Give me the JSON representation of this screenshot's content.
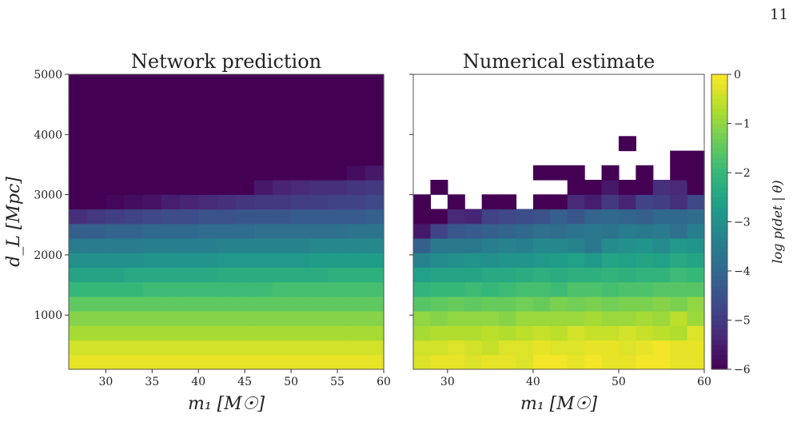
{
  "page_number": "11",
  "chart_data": [
    {
      "type": "heatmap",
      "title": "Network prediction",
      "xlabel": "m₁ [M☉]",
      "ylabel": "d_L [Mpc]",
      "x_edges": [
        26,
        28,
        30,
        32,
        34,
        36,
        38,
        40,
        42,
        44,
        46,
        48,
        50,
        52,
        54,
        56,
        58,
        60
      ],
      "y_edges": [
        100,
        342.1,
        584.2,
        826.3,
        1068.4,
        1310.5,
        1552.6,
        1794.7,
        2036.8,
        2278.9,
        2521.0,
        2763.1,
        3005.2,
        3247.3,
        3489.4,
        3731.5,
        3973.6,
        4215.7,
        4457.8,
        4699.9,
        5000
      ],
      "xticks": [
        30,
        35,
        40,
        45,
        50,
        55,
        60
      ],
      "yticks": [
        1000,
        2000,
        3000,
        4000,
        5000
      ],
      "xlim": [
        26,
        60
      ],
      "ylim": [
        100,
        5000
      ],
      "z": [
        [
          -0.2,
          -0.2,
          -0.2,
          -0.2,
          -0.2,
          -0.2,
          -0.2,
          -0.2,
          -0.2,
          -0.2,
          -0.2,
          -0.2,
          -0.2,
          -0.2,
          -0.2,
          -0.2,
          -0.2
        ],
        [
          -0.4,
          -0.4,
          -0.4,
          -0.4,
          -0.4,
          -0.4,
          -0.4,
          -0.4,
          -0.4,
          -0.4,
          -0.4,
          -0.4,
          -0.4,
          -0.4,
          -0.4,
          -0.4,
          -0.4
        ],
        [
          -0.8,
          -0.8,
          -0.8,
          -0.8,
          -0.8,
          -0.8,
          -0.8,
          -0.8,
          -0.8,
          -0.8,
          -0.8,
          -0.8,
          -0.8,
          -0.8,
          -0.8,
          -0.8,
          -0.8
        ],
        [
          -1.1,
          -1.1,
          -1.1,
          -1.1,
          -1.1,
          -1.1,
          -1.1,
          -1.1,
          -1.1,
          -1.1,
          -1.1,
          -1.1,
          -1.1,
          -1.1,
          -1.1,
          -1.1,
          -1.1
        ],
        [
          -1.5,
          -1.5,
          -1.5,
          -1.5,
          -1.5,
          -1.5,
          -1.5,
          -1.5,
          -1.5,
          -1.5,
          -1.5,
          -1.5,
          -1.5,
          -1.5,
          -1.5,
          -1.5,
          -1.5
        ],
        [
          -2.0,
          -2.0,
          -2.0,
          -2.0,
          -1.9,
          -1.9,
          -1.9,
          -1.9,
          -1.9,
          -1.9,
          -1.9,
          -1.8,
          -1.8,
          -1.8,
          -1.8,
          -1.8,
          -1.8
        ],
        [
          -2.5,
          -2.5,
          -2.5,
          -2.4,
          -2.4,
          -2.4,
          -2.4,
          -2.4,
          -2.3,
          -2.3,
          -2.3,
          -2.3,
          -2.3,
          -2.3,
          -2.2,
          -2.2,
          -2.2
        ],
        [
          -3.0,
          -3.0,
          -3.0,
          -3.0,
          -2.9,
          -2.9,
          -2.9,
          -2.9,
          -2.8,
          -2.8,
          -2.8,
          -2.8,
          -2.8,
          -2.7,
          -2.7,
          -2.7,
          -2.7
        ],
        [
          -3.5,
          -3.5,
          -3.5,
          -3.5,
          -3.4,
          -3.4,
          -3.4,
          -3.4,
          -3.3,
          -3.3,
          -3.3,
          -3.3,
          -3.3,
          -3.2,
          -3.2,
          -3.2,
          -3.2
        ],
        [
          -4.2,
          -4.2,
          -4.1,
          -4.1,
          -4.0,
          -4.0,
          -4.0,
          -3.9,
          -3.9,
          -3.9,
          -3.8,
          -3.8,
          -3.8,
          -3.8,
          -3.8,
          -3.7,
          -3.7
        ],
        [
          -5.2,
          -5.0,
          -4.9,
          -4.8,
          -4.7,
          -4.6,
          -4.6,
          -4.5,
          -4.5,
          -4.4,
          -4.4,
          -4.4,
          -4.3,
          -4.3,
          -4.3,
          -4.3,
          -4.2
        ],
        [
          -6.0,
          -6.0,
          -5.9,
          -5.8,
          -5.7,
          -5.5,
          -5.4,
          -5.3,
          -5.2,
          -5.1,
          -5.0,
          -5.0,
          -4.9,
          -4.9,
          -4.8,
          -4.8,
          -4.7
        ],
        [
          -6.0,
          -6.0,
          -6.0,
          -6.0,
          -6.0,
          -6.0,
          -6.0,
          -6.0,
          -6.0,
          -6.0,
          -5.6,
          -5.4,
          -5.3,
          -5.2,
          -5.2,
          -5.1,
          -5.0
        ],
        [
          -6.0,
          -6.0,
          -6.0,
          -6.0,
          -6.0,
          -6.0,
          -6.0,
          -6.0,
          -6.0,
          -6.0,
          -6.0,
          -6.0,
          -6.0,
          -6.0,
          -6.0,
          -5.8,
          -5.6
        ],
        [
          -6.0,
          -6.0,
          -6.0,
          -6.0,
          -6.0,
          -6.0,
          -6.0,
          -6.0,
          -6.0,
          -6.0,
          -6.0,
          -6.0,
          -6.0,
          -6.0,
          -6.0,
          -6.0,
          -6.0
        ],
        [
          -6.0,
          -6.0,
          -6.0,
          -6.0,
          -6.0,
          -6.0,
          -6.0,
          -6.0,
          -6.0,
          -6.0,
          -6.0,
          -6.0,
          -6.0,
          -6.0,
          -6.0,
          -6.0,
          -6.0
        ],
        [
          -6.0,
          -6.0,
          -6.0,
          -6.0,
          -6.0,
          -6.0,
          -6.0,
          -6.0,
          -6.0,
          -6.0,
          -6.0,
          -6.0,
          -6.0,
          -6.0,
          -6.0,
          -6.0,
          -6.0
        ],
        [
          -6.0,
          -6.0,
          -6.0,
          -6.0,
          -6.0,
          -6.0,
          -6.0,
          -6.0,
          -6.0,
          -6.0,
          -6.0,
          -6.0,
          -6.0,
          -6.0,
          -6.0,
          -6.0,
          -6.0
        ],
        [
          -6.0,
          -6.0,
          -6.0,
          -6.0,
          -6.0,
          -6.0,
          -6.0,
          -6.0,
          -6.0,
          -6.0,
          -6.0,
          -6.0,
          -6.0,
          -6.0,
          -6.0,
          -6.0,
          -6.0
        ],
        [
          -6.0,
          -6.0,
          -6.0,
          -6.0,
          -6.0,
          -6.0,
          -6.0,
          -6.0,
          -6.0,
          -6.0,
          -6.0,
          -6.0,
          -6.0,
          -6.0,
          -6.0,
          -6.0,
          -6.0
        ]
      ]
    },
    {
      "type": "heatmap",
      "title": "Numerical estimate",
      "xlabel": "m₁ [M☉]",
      "x_edges": [
        26,
        28,
        30,
        32,
        34,
        36,
        38,
        40,
        42,
        44,
        46,
        48,
        50,
        52,
        54,
        56,
        58,
        60
      ],
      "y_edges": [
        100,
        342.1,
        584.2,
        826.3,
        1068.4,
        1310.5,
        1552.6,
        1794.7,
        2036.8,
        2278.9,
        2521.0,
        2763.1,
        3005.2,
        3247.3,
        3489.4,
        3731.5,
        3973.6,
        4215.7,
        4457.8,
        4699.9,
        5000
      ],
      "xticks": [
        30,
        40,
        50,
        60
      ],
      "xlim": [
        26,
        60
      ],
      "ylim": [
        100,
        5000
      ],
      "z": [
        [
          -0.3,
          -0.2,
          -0.2,
          -0.3,
          -0.2,
          -0.2,
          -0.3,
          -0.1,
          -0.1,
          -0.2,
          -0.1,
          -0.2,
          -0.2,
          -0.1,
          -0.1,
          -0.2,
          -0.2
        ],
        [
          -0.4,
          -0.4,
          -0.3,
          -0.4,
          -0.5,
          -0.3,
          -0.3,
          -0.2,
          -0.3,
          -0.3,
          -0.2,
          -0.2,
          -0.3,
          -0.2,
          -0.1,
          -0.2,
          -0.2
        ],
        [
          -0.8,
          -0.7,
          -0.7,
          -0.7,
          -0.6,
          -0.7,
          -0.6,
          -0.5,
          -0.6,
          -0.4,
          -0.5,
          -0.5,
          -0.4,
          -0.5,
          -0.6,
          -0.7,
          -0.3
        ],
        [
          -1.0,
          -1.1,
          -1.0,
          -1.0,
          -1.0,
          -1.1,
          -0.9,
          -0.9,
          -0.9,
          -0.9,
          -0.8,
          -0.9,
          -0.9,
          -0.8,
          -0.9,
          -0.6,
          -0.9
        ],
        [
          -1.6,
          -1.5,
          -1.4,
          -1.5,
          -1.4,
          -1.4,
          -1.3,
          -1.4,
          -1.2,
          -1.3,
          -1.2,
          -1.3,
          -1.2,
          -1.2,
          -1.1,
          -1.2,
          -1.0
        ],
        [
          -2.1,
          -2.0,
          -2.0,
          -1.9,
          -2.0,
          -1.9,
          -1.8,
          -1.8,
          -1.9,
          -1.7,
          -1.7,
          -1.8,
          -1.7,
          -1.7,
          -1.6,
          -1.6,
          -1.6
        ],
        [
          -2.6,
          -2.5,
          -2.5,
          -2.5,
          -2.4,
          -2.4,
          -2.3,
          -2.2,
          -2.3,
          -2.2,
          -2.2,
          -2.1,
          -2.2,
          -2.1,
          -2.1,
          -1.9,
          -2.0
        ],
        [
          -3.3,
          -3.1,
          -3.0,
          -2.9,
          -3.0,
          -2.9,
          -2.9,
          -2.8,
          -2.7,
          -2.6,
          -2.8,
          -2.5,
          -2.6,
          -2.5,
          -2.6,
          -2.4,
          -2.5
        ],
        [
          -4.2,
          -3.6,
          -3.6,
          -3.6,
          -3.4,
          -3.3,
          -3.4,
          -3.2,
          -3.2,
          -3.3,
          -3.6,
          -3.1,
          -3.0,
          -2.9,
          -3.1,
          -2.8,
          -2.9
        ],
        [
          -5.6,
          -4.8,
          -4.4,
          -4.3,
          -4.2,
          -4.1,
          -4.0,
          -3.8,
          -3.9,
          -3.7,
          -3.6,
          -3.7,
          -3.5,
          -3.6,
          -3.5,
          -3.8,
          -3.4
        ],
        [
          -6.0,
          -6.0,
          -5.3,
          -5.4,
          -4.8,
          -4.7,
          -4.6,
          -4.5,
          -4.2,
          -4.4,
          -4.1,
          -4.0,
          -4.1,
          -4.2,
          -4.0,
          -4.0,
          -3.9
        ],
        [
          -6.0,
          null,
          -6.0,
          null,
          -6.0,
          -6.0,
          null,
          -6.0,
          -6.0,
          -5.3,
          -5.5,
          -5.0,
          -5.4,
          -4.8,
          -4.9,
          -5.2,
          -4.7
        ],
        [
          null,
          -6.0,
          null,
          null,
          null,
          null,
          null,
          null,
          null,
          -6.0,
          -6.0,
          -5.6,
          -6.0,
          -6.0,
          -5.2,
          -5.3,
          -6.0
        ],
        [
          null,
          null,
          null,
          null,
          null,
          null,
          null,
          -6.0,
          -6.0,
          -6.0,
          null,
          -6.0,
          null,
          -6.0,
          null,
          -6.0,
          -6.0
        ],
        [
          null,
          null,
          null,
          null,
          null,
          null,
          null,
          null,
          null,
          null,
          null,
          null,
          null,
          null,
          null,
          -6.0,
          -6.0
        ],
        [
          null,
          null,
          null,
          null,
          null,
          null,
          null,
          null,
          null,
          null,
          null,
          null,
          -6.0,
          null,
          null,
          null,
          null
        ],
        [
          null,
          null,
          null,
          null,
          null,
          null,
          null,
          null,
          null,
          null,
          null,
          null,
          null,
          null,
          null,
          null,
          null
        ],
        [
          null,
          null,
          null,
          null,
          null,
          null,
          null,
          null,
          null,
          null,
          null,
          null,
          null,
          null,
          null,
          null,
          null
        ],
        [
          null,
          null,
          null,
          null,
          null,
          null,
          null,
          null,
          null,
          null,
          null,
          null,
          null,
          null,
          null,
          null,
          null
        ],
        [
          null,
          null,
          null,
          null,
          null,
          null,
          null,
          null,
          null,
          null,
          null,
          null,
          null,
          null,
          null,
          null,
          null
        ]
      ]
    }
  ],
  "colorbar": {
    "label": "log p(det | θ)",
    "ticks": [
      0,
      -1,
      -2,
      -3,
      -4,
      -5,
      -6
    ],
    "tick_labels": [
      "0",
      "−1",
      "−2",
      "−3",
      "−4",
      "−5",
      "−6"
    ],
    "range": [
      -6,
      0
    ],
    "colormap": "viridis"
  }
}
